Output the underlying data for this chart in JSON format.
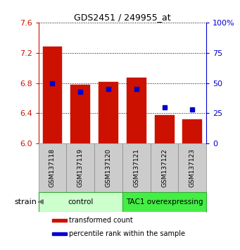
{
  "title": "GDS2451 / 249955_at",
  "samples": [
    "GSM137118",
    "GSM137119",
    "GSM137120",
    "GSM137121",
    "GSM137122",
    "GSM137123"
  ],
  "transformed_counts": [
    7.28,
    6.78,
    6.81,
    6.87,
    6.38,
    6.32
  ],
  "percentile_ranks": [
    50,
    43,
    45,
    45,
    30,
    28
  ],
  "ylim_left": [
    6.0,
    7.6
  ],
  "ylim_right": [
    0,
    100
  ],
  "yticks_left": [
    6.0,
    6.4,
    6.8,
    7.2,
    7.6
  ],
  "yticks_right": [
    0,
    25,
    50,
    75,
    100
  ],
  "bar_color": "#cc1100",
  "dot_color": "#0000cc",
  "bar_width": 0.7,
  "groups": [
    {
      "label": "control",
      "indices": [
        0,
        1,
        2
      ],
      "color": "#ccffcc",
      "edge_color": "#33aa33"
    },
    {
      "label": "TAC1 overexpressing",
      "indices": [
        3,
        4,
        5
      ],
      "color": "#44ee44",
      "edge_color": "#33aa33"
    }
  ],
  "strain_label": "strain",
  "legend_items": [
    {
      "label": "transformed count",
      "color": "#cc1100"
    },
    {
      "label": "percentile rank within the sample",
      "color": "#0000cc"
    }
  ],
  "background_color": "#ffffff",
  "axis_label_color_left": "#cc1100",
  "axis_label_color_right": "#0000cc",
  "sample_box_color": "#cccccc",
  "sample_box_edge": "#888888"
}
